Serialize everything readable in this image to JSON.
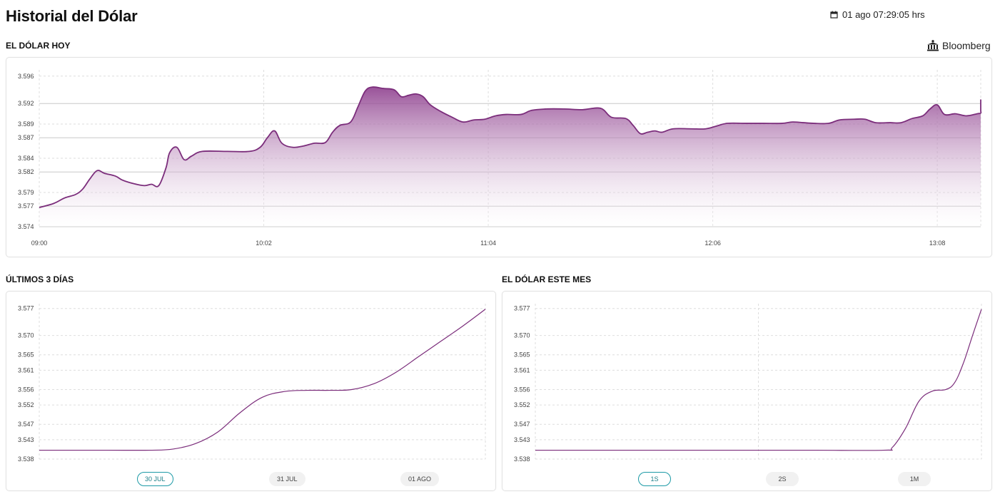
{
  "header": {
    "title": "Historial del Dólar",
    "timestamp": "01 ago 07:29:05 hrs",
    "source": "Bloomberg"
  },
  "colors": {
    "line": "#7b2d7b",
    "fill_top": "#8e3f8e",
    "grid": "#d0d0d0",
    "accent_button": "#1c9aa6"
  },
  "sections": {
    "today": "EL DÓLAR HOY",
    "three_days": "ÚLTIMOS 3 DÍAS",
    "month": "EL DÓLAR ESTE MES"
  },
  "three_days_buttons": [
    {
      "label": "30 JUL",
      "active": true
    },
    {
      "label": "31 JUL",
      "active": false
    },
    {
      "label": "01 AGO",
      "active": false
    }
  ],
  "month_buttons": [
    {
      "label": "1S",
      "active": true
    },
    {
      "label": "2S",
      "active": false
    },
    {
      "label": "1M",
      "active": false
    }
  ],
  "chart_data": [
    {
      "type": "area",
      "title": "EL DÓLAR HOY",
      "x_ticks": [
        "09:00",
        "10:02",
        "11:04",
        "12:06",
        "13:08"
      ],
      "x_range": [
        0,
        260
      ],
      "x_tick_values": [
        0,
        62,
        124,
        186,
        248
      ],
      "y_ticks": [
        "3.596",
        "3.592",
        "3.589",
        "3.587",
        "3.584",
        "3.582",
        "3.579",
        "3.577",
        "3.574"
      ],
      "ylim": [
        3.574,
        3.5965
      ],
      "points": [
        [
          0,
          3.5768
        ],
        [
          4,
          3.5774
        ],
        [
          7,
          3.5782
        ],
        [
          10,
          3.5787
        ],
        [
          12,
          3.5795
        ],
        [
          14,
          3.581
        ],
        [
          16,
          3.5822
        ],
        [
          18,
          3.5818
        ],
        [
          21,
          3.5814
        ],
        [
          23,
          3.5808
        ],
        [
          26,
          3.5803
        ],
        [
          29,
          3.58
        ],
        [
          31,
          3.5802
        ],
        [
          33,
          3.58
        ],
        [
          35,
          3.5826
        ],
        [
          36,
          3.5848
        ],
        [
          38,
          3.5856
        ],
        [
          40,
          3.5838
        ],
        [
          42,
          3.5843
        ],
        [
          45,
          3.585
        ],
        [
          52,
          3.585
        ],
        [
          58,
          3.585
        ],
        [
          61,
          3.5856
        ],
        [
          63,
          3.587
        ],
        [
          65,
          3.588
        ],
        [
          67,
          3.5862
        ],
        [
          70,
          3.5856
        ],
        [
          73,
          3.5858
        ],
        [
          76,
          3.5862
        ],
        [
          79,
          3.5863
        ],
        [
          81,
          3.5878
        ],
        [
          83,
          3.5888
        ],
        [
          86,
          3.5893
        ],
        [
          88,
          3.5915
        ],
        [
          90,
          3.5938
        ],
        [
          92,
          3.5944
        ],
        [
          95,
          3.5942
        ],
        [
          98,
          3.594
        ],
        [
          100,
          3.593
        ],
        [
          102,
          3.5932
        ],
        [
          104,
          3.5934
        ],
        [
          106,
          3.593
        ],
        [
          108,
          3.5918
        ],
        [
          111,
          3.5908
        ],
        [
          114,
          3.59
        ],
        [
          117,
          3.5893
        ],
        [
          120,
          3.5896
        ],
        [
          123,
          3.5897
        ],
        [
          126,
          3.5902
        ],
        [
          129,
          3.5904
        ],
        [
          133,
          3.5904
        ],
        [
          136,
          3.591
        ],
        [
          140,
          3.5912
        ],
        [
          145,
          3.5912
        ],
        [
          150,
          3.5911
        ],
        [
          155,
          3.5913
        ],
        [
          158,
          3.59
        ],
        [
          162,
          3.5898
        ],
        [
          164,
          3.5888
        ],
        [
          166,
          3.5876
        ],
        [
          168,
          3.5878
        ],
        [
          170,
          3.588
        ],
        [
          172,
          3.5878
        ],
        [
          175,
          3.5883
        ],
        [
          180,
          3.5883
        ],
        [
          184,
          3.5883
        ],
        [
          187,
          3.5887
        ],
        [
          190,
          3.5891
        ],
        [
          195,
          3.5891
        ],
        [
          200,
          3.5891
        ],
        [
          205,
          3.5891
        ],
        [
          208,
          3.5893
        ],
        [
          211,
          3.5892
        ],
        [
          214,
          3.5891
        ],
        [
          218,
          3.5891
        ],
        [
          221,
          3.5896
        ],
        [
          225,
          3.5897
        ],
        [
          228,
          3.5897
        ],
        [
          231,
          3.5892
        ],
        [
          235,
          3.5892
        ],
        [
          238,
          3.5892
        ],
        [
          241,
          3.5898
        ],
        [
          244,
          3.5902
        ],
        [
          246,
          3.5912
        ],
        [
          248,
          3.5918
        ],
        [
          250,
          3.5904
        ],
        [
          253,
          3.5905
        ],
        [
          256,
          3.5902
        ],
        [
          259,
          3.5905
        ],
        [
          262,
          3.5906
        ],
        [
          265,
          3.591
        ],
        [
          268,
          3.5926
        ]
      ]
    },
    {
      "type": "line",
      "title": "ÚLTIMOS 3 DÍAS",
      "y_ticks": [
        "3.577",
        "3.570",
        "3.565",
        "3.561",
        "3.556",
        "3.552",
        "3.547",
        "3.543",
        "3.538"
      ],
      "ylim": [
        3.538,
        3.5775
      ],
      "x_range": [
        0,
        100
      ],
      "points": [
        [
          0,
          3.5403
        ],
        [
          15,
          3.5403
        ],
        [
          25,
          3.5403
        ],
        [
          30,
          3.5406
        ],
        [
          35,
          3.542
        ],
        [
          40,
          3.545
        ],
        [
          45,
          3.55
        ],
        [
          50,
          3.554
        ],
        [
          55,
          3.5555
        ],
        [
          60,
          3.5558
        ],
        [
          65,
          3.5558
        ],
        [
          70,
          3.556
        ],
        [
          75,
          3.5575
        ],
        [
          80,
          3.5605
        ],
        [
          85,
          3.5645
        ],
        [
          90,
          3.5685
        ],
        [
          95,
          3.5725
        ],
        [
          100,
          3.5768
        ]
      ]
    },
    {
      "type": "line",
      "title": "EL DÓLAR ESTE MES",
      "y_ticks": [
        "3.577",
        "3.570",
        "3.565",
        "3.561",
        "3.556",
        "3.552",
        "3.547",
        "3.543",
        "3.538"
      ],
      "ylim": [
        3.538,
        3.5775
      ],
      "x_range": [
        0,
        100
      ],
      "x_grid": [
        0,
        50,
        100
      ],
      "points": [
        [
          0,
          3.5403
        ],
        [
          30,
          3.5403
        ],
        [
          60,
          3.5403
        ],
        [
          78,
          3.5403
        ],
        [
          80,
          3.541
        ],
        [
          83,
          3.546
        ],
        [
          86,
          3.553
        ],
        [
          89,
          3.5556
        ],
        [
          92,
          3.556
        ],
        [
          94,
          3.5578
        ],
        [
          96,
          3.563
        ],
        [
          98,
          3.57
        ],
        [
          100,
          3.5768
        ]
      ]
    }
  ]
}
